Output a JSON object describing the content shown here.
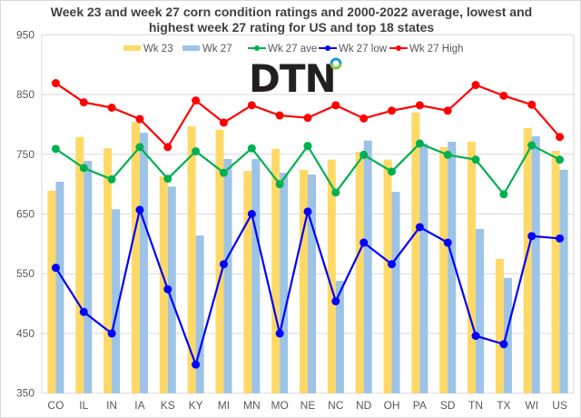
{
  "chart_data": {
    "type": "bar",
    "title": "Week 23 and week 27 corn condition ratings and 2000-2022 average, lowest and highest week 27 rating for US and top 18 states",
    "title_lines": [
      "Week 23 and week 27 corn condition ratings and 2000-2022 average, lowest and",
      "highest week 27 rating for US and top 18 states"
    ],
    "xlabel": "",
    "ylabel": "",
    "ylim": [
      350,
      950
    ],
    "yticks": [
      350,
      450,
      550,
      650,
      750,
      850,
      950
    ],
    "grid": true,
    "legend_position": "top",
    "categories": [
      "CO",
      "IL",
      "IN",
      "IA",
      "KS",
      "KY",
      "MI",
      "MN",
      "MO",
      "NE",
      "NC",
      "ND",
      "OH",
      "PA",
      "SD",
      "TN",
      "TX",
      "WI",
      "US"
    ],
    "series": [
      {
        "name": "Wk 23",
        "kind": "bar",
        "color": "#FFD966",
        "values": [
          689,
          779,
          760,
          804,
          713,
          797,
          791,
          722,
          759,
          724,
          741,
          754,
          741,
          820,
          762,
          771,
          575,
          794,
          756
        ]
      },
      {
        "name": "Wk 27",
        "kind": "bar",
        "color": "#9DC3E6",
        "values": [
          704,
          739,
          658,
          786,
          696,
          614,
          742,
          742,
          719,
          716,
          538,
          773,
          687,
          768,
          771,
          625,
          543,
          780,
          724
        ]
      },
      {
        "name": "Wk 27 ave",
        "kind": "line",
        "color": "#00B050",
        "values": [
          759,
          727,
          708,
          762,
          709,
          755,
          719,
          760,
          700,
          764,
          686,
          749,
          721,
          768,
          749,
          741,
          683,
          765,
          741
        ]
      },
      {
        "name": "Wk 27 low",
        "kind": "line",
        "color": "#0000FF",
        "values": [
          560,
          486,
          450,
          657,
          524,
          398,
          566,
          650,
          450,
          654,
          504,
          602,
          566,
          628,
          602,
          446,
          432,
          613,
          609
        ]
      },
      {
        "name": "Wk 27 High",
        "kind": "line",
        "color": "#FF0000",
        "values": [
          869,
          837,
          828,
          809,
          762,
          840,
          803,
          832,
          815,
          811,
          832,
          810,
          823,
          832,
          823,
          866,
          848,
          833,
          779
        ]
      }
    ]
  },
  "logo": {
    "text": "DTN",
    "colors": [
      "#231F20",
      "#1E9AD6",
      "#8DC63F"
    ]
  }
}
